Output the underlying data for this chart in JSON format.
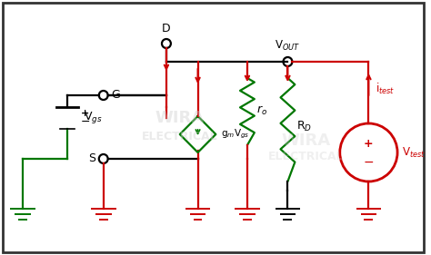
{
  "bg_color": "#ffffff",
  "black": "#000000",
  "red": "#cc0000",
  "green": "#007700",
  "fig_w": 4.74,
  "fig_h": 2.81,
  "dpi": 100,
  "labels": {
    "G": "G",
    "D": "D",
    "S": "S",
    "Vgs": "V$_{gs}$",
    "gmVgs": "g$_m$V$_{gs}$",
    "ro": "r$_o$",
    "RD": "R$_D$",
    "VOUT": "V$_{OUT}$",
    "itest": "i$_{test}$",
    "Vtest": "V$_{test}$",
    "plus": "+",
    "minus": "−"
  }
}
